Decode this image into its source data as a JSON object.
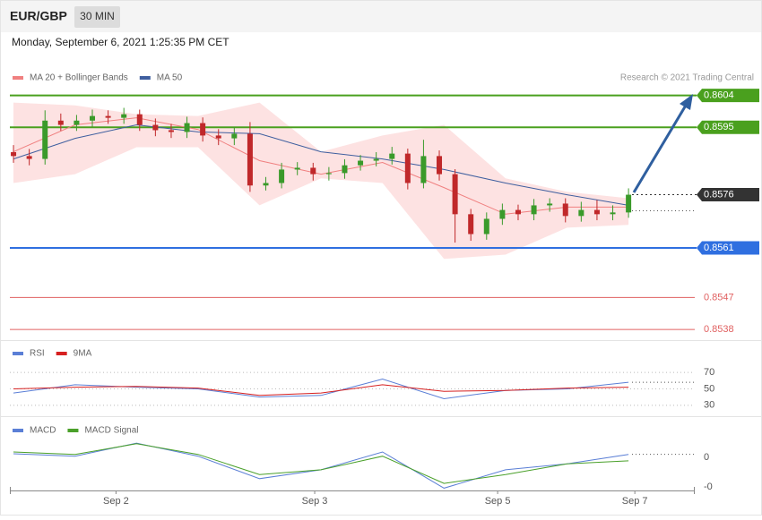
{
  "header": {
    "symbol": "EUR/GBP",
    "interval": "30 MIN",
    "timestamp": "Monday, September 6, 2021 1:25:35 PM CET"
  },
  "chart_data": [
    {
      "type": "candlestick",
      "credit": "Research © 2021 Trading Central",
      "up_color": "#3a9a2a",
      "down_color": "#c0282a",
      "band_color": "#fde2e2",
      "ylim": [
        0.8536,
        0.8613
      ],
      "open": [
        0.8588,
        0.85869,
        0.85861,
        0.85969,
        0.85957,
        0.85969,
        0.85982,
        0.85977,
        0.85987,
        0.85957,
        0.85942,
        0.85937,
        0.85962,
        0.85927,
        0.85919,
        0.85932,
        0.85786,
        0.85793,
        0.85831,
        0.85836,
        0.85818,
        0.85821,
        0.85843,
        0.85856,
        0.85861,
        0.85876,
        0.85793,
        0.85869,
        0.85818,
        0.85705,
        0.85649,
        0.85692,
        0.85717,
        0.85705,
        0.8573,
        0.85735,
        0.857,
        0.85717,
        0.85705,
        0.8571
      ],
      "high": [
        0.859,
        0.85889,
        0.85998,
        0.85989,
        0.85985,
        0.86,
        0.85998,
        0.86005,
        0.86,
        0.85975,
        0.8596,
        0.8598,
        0.85978,
        0.85945,
        0.8595,
        0.85965,
        0.8581,
        0.8585,
        0.85852,
        0.8585,
        0.85838,
        0.8586,
        0.85872,
        0.8588,
        0.85895,
        0.8589,
        0.85915,
        0.85885,
        0.85832,
        0.8572,
        0.8571,
        0.85735,
        0.85732,
        0.85748,
        0.8575,
        0.8575,
        0.8574,
        0.85745,
        0.8573,
        0.85778
      ],
      "low": [
        0.8585,
        0.85843,
        0.85845,
        0.8594,
        0.8594,
        0.85952,
        0.8596,
        0.8596,
        0.8594,
        0.85925,
        0.8592,
        0.8592,
        0.8591,
        0.859,
        0.859,
        0.85768,
        0.85772,
        0.85778,
        0.85815,
        0.858,
        0.858,
        0.85805,
        0.85828,
        0.8584,
        0.85845,
        0.85775,
        0.85778,
        0.858,
        0.85625,
        0.8563,
        0.85633,
        0.85675,
        0.85688,
        0.85688,
        0.85712,
        0.85682,
        0.85684,
        0.85688,
        0.85688,
        0.85695
      ],
      "close": [
        0.85869,
        0.85861,
        0.85969,
        0.85957,
        0.85969,
        0.85982,
        0.85977,
        0.85987,
        0.85957,
        0.85942,
        0.85937,
        0.85962,
        0.85927,
        0.85919,
        0.85932,
        0.85786,
        0.85793,
        0.85831,
        0.85836,
        0.85818,
        0.85821,
        0.85843,
        0.85856,
        0.85861,
        0.85876,
        0.85793,
        0.85869,
        0.85818,
        0.85705,
        0.85649,
        0.85692,
        0.85717,
        0.85705,
        0.8573,
        0.85735,
        0.857,
        0.85717,
        0.85705,
        0.8571,
        0.8576
      ],
      "overlays": [
        {
          "name": "MA 20 + Bollinger Bands",
          "color": "#f08080",
          "values": [
            0.85881,
            0.85957,
            0.85977,
            0.85944,
            0.85856,
            0.85818,
            0.85851,
            0.8578,
            0.85705,
            0.85725,
            0.85725
          ],
          "upper": [
            0.8602,
            0.86012,
            0.85987,
            0.85982,
            0.8602,
            0.85881,
            0.85927,
            0.85957,
            0.85806,
            0.85768,
            0.8575
          ],
          "lower": [
            0.85793,
            0.85818,
            0.85894,
            0.85894,
            0.8573,
            0.85806,
            0.85793,
            0.85579,
            0.85591,
            0.85667,
            0.85675
          ]
        },
        {
          "name": "MA 50",
          "color": "#3f5f9f",
          "values": [
            0.85861,
            0.85919,
            0.85957,
            0.85937,
            0.85932,
            0.85881,
            0.85861,
            0.85831,
            0.85793,
            0.8576,
            0.8573
          ]
        }
      ],
      "levels": [
        {
          "value": 0.8604,
          "color": "#4aa01e",
          "boxed": true,
          "line": "solid"
        },
        {
          "value": 0.8595,
          "color": "#4aa01e",
          "boxed": true,
          "line": "solid"
        },
        {
          "value": 0.8576,
          "color": "#333333",
          "boxed": true,
          "line": "dotted"
        },
        {
          "value": 0.8561,
          "color": "#2f6fe0",
          "boxed": true,
          "line": "solid"
        },
        {
          "value": 0.8547,
          "color": "#e06060",
          "boxed": false,
          "line": "solid"
        },
        {
          "value": 0.8538,
          "color": "#e06060",
          "boxed": false,
          "line": "solid"
        }
      ]
    },
    {
      "type": "line",
      "ylim": [
        20,
        105
      ],
      "yticks": [
        70,
        50,
        30
      ],
      "series": [
        {
          "name": "RSI",
          "color": "#5b7fd6",
          "values": [
            45,
            55,
            52,
            50,
            40,
            42,
            62,
            38,
            48,
            50,
            58
          ]
        },
        {
          "name": "9MA",
          "color": "#d62020",
          "values": [
            50,
            52,
            53,
            51,
            42,
            45,
            55,
            47,
            48,
            51,
            52
          ]
        }
      ]
    },
    {
      "type": "line",
      "ylim": [
        -0.00056,
        0.00062
      ],
      "yticks": [
        0,
        {
          "value": -0.0005,
          "label": "-0"
        }
      ],
      "xlim": [
        -0.23,
        43.2
      ],
      "xticks": [
        {
          "value": 6.5,
          "label": "Sep 2"
        },
        {
          "value": 19.1,
          "label": "Sep 3"
        },
        {
          "value": 30.7,
          "label": "Sep 5"
        },
        {
          "value": 39.4,
          "label": "Sep 7"
        }
      ],
      "series": [
        {
          "name": "MACD",
          "color": "#5b7fd6",
          "values": [
            6e-05,
            2e-05,
            0.00024,
            2e-05,
            -0.00036,
            -0.00021,
            9e-05,
            -0.00052,
            -0.00021,
            -0.00011,
            5e-05
          ]
        },
        {
          "name": "MACD Signal",
          "color": "#4aa02a",
          "values": [
            9e-05,
            5e-05,
            0.00023,
            5e-05,
            -0.00029,
            -0.00021,
            2e-05,
            -0.00044,
            -0.00029,
            -0.00011,
            -6e-05
          ]
        }
      ]
    }
  ]
}
